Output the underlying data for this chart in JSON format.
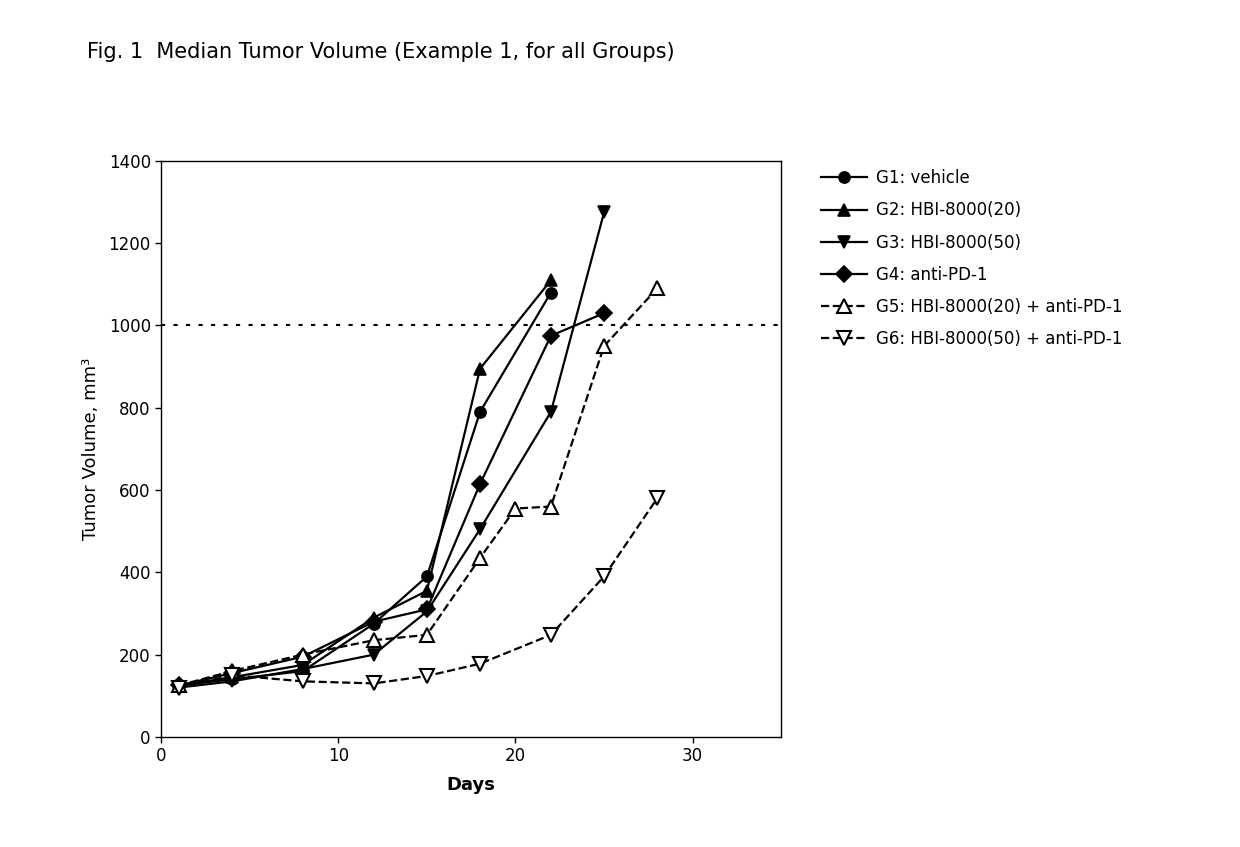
{
  "title": "Fig. 1  Median Tumor Volume (Example 1, for all Groups)",
  "xlabel": "Days",
  "ylabel": "Tumor Volume, mm³",
  "xlim": [
    0,
    35
  ],
  "ylim": [
    0,
    1400
  ],
  "yticks": [
    0,
    200,
    400,
    600,
    800,
    1000,
    1200,
    1400
  ],
  "xticks": [
    0,
    10,
    20,
    30
  ],
  "hline_y": 1000,
  "groups": {
    "G1": {
      "label": "G1: vehicle",
      "x": [
        1,
        4,
        8,
        12,
        15,
        18,
        22
      ],
      "y": [
        125,
        140,
        160,
        275,
        390,
        790,
        1080
      ],
      "style": "solid",
      "marker": "circle_filled",
      "color": "#000000"
    },
    "G2": {
      "label": "G2: HBI-8000(20)",
      "x": [
        1,
        4,
        8,
        12,
        15,
        18,
        22
      ],
      "y": [
        125,
        145,
        175,
        290,
        355,
        895,
        1110
      ],
      "style": "solid",
      "marker": "triangle_up_filled",
      "color": "#000000"
    },
    "G3": {
      "label": "G3: HBI-8000(50)",
      "x": [
        1,
        4,
        8,
        12,
        15,
        18,
        22,
        25
      ],
      "y": [
        120,
        135,
        165,
        200,
        305,
        505,
        790,
        1275
      ],
      "style": "solid",
      "marker": "triangle_down_filled",
      "color": "#000000"
    },
    "G4": {
      "label": "G4: anti-PD-1",
      "x": [
        1,
        4,
        8,
        12,
        15,
        18,
        22,
        25
      ],
      "y": [
        125,
        155,
        195,
        280,
        310,
        615,
        975,
        1030
      ],
      "style": "solid",
      "marker": "diamond_filled",
      "color": "#000000"
    },
    "G5": {
      "label": "G5: HBI-8000(20) + anti-PD-1",
      "x": [
        1,
        4,
        8,
        12,
        15,
        18,
        20,
        22,
        25,
        28
      ],
      "y": [
        125,
        160,
        200,
        235,
        248,
        435,
        555,
        560,
        950,
        1090
      ],
      "style": "dashed",
      "marker": "triangle_up_open",
      "color": "#000000"
    },
    "G6": {
      "label": "G6: HBI-8000(50) + anti-PD-1",
      "x": [
        1,
        4,
        8,
        12,
        15,
        18,
        22,
        25,
        28
      ],
      "y": [
        120,
        150,
        135,
        130,
        148,
        178,
        248,
        390,
        580
      ],
      "style": "dashed",
      "marker": "triangle_down_open",
      "color": "#000000"
    }
  },
  "background_color": "#ffffff",
  "title_fontsize": 15,
  "axis_label_fontsize": 13,
  "tick_fontsize": 12,
  "legend_fontsize": 12
}
